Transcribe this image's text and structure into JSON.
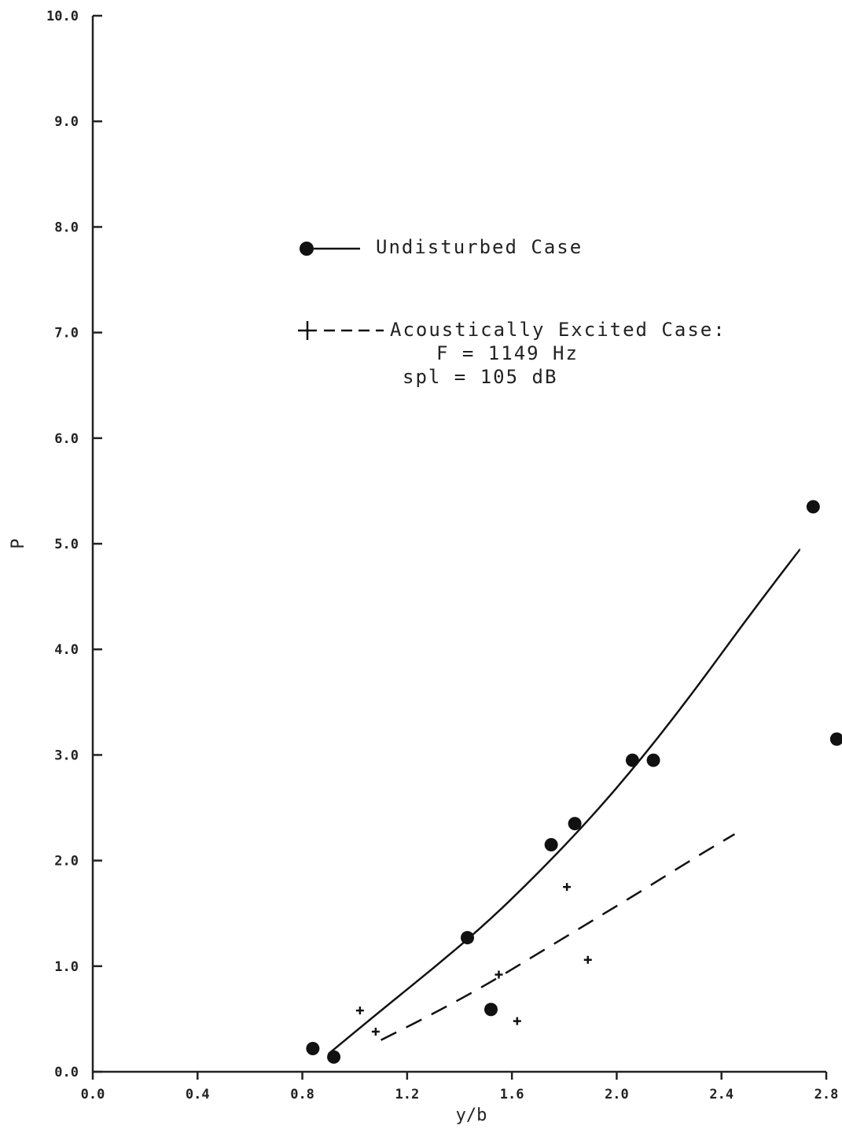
{
  "chart_data": {
    "type": "scatter",
    "title": "",
    "xlabel": "y/b",
    "ylabel": "P",
    "xlim": [
      0.0,
      2.8
    ],
    "ylim": [
      0.0,
      10.0
    ],
    "x_tick_labels": [
      "0.0",
      "0.4",
      "0.8",
      "1.2",
      "1.6",
      "2.0",
      "2.4",
      "2.8"
    ],
    "x_tick_values": [
      0.0,
      0.4,
      0.8,
      1.2,
      1.6,
      2.0,
      2.4,
      2.8
    ],
    "y_tick_labels": [
      "0.0",
      "1.0",
      "2.0",
      "3.0",
      "4.0",
      "5.0",
      "6.0",
      "7.0",
      "8.0",
      "9.0",
      "10.0"
    ],
    "y_tick_values": [
      0,
      1,
      2,
      3,
      4,
      5,
      6,
      7,
      8,
      9,
      10
    ],
    "grid": false,
    "legend": {
      "placement": "top-center",
      "entries": [
        {
          "label": "Undisturbed Case",
          "marker": "filled-circle",
          "line": "solid"
        },
        {
          "label": "Acoustically Excited Case:",
          "sublines": [
            "F = 1149 Hz",
            "spl = 105 dB"
          ],
          "marker": "plus",
          "line": "dashed"
        }
      ]
    },
    "series": [
      {
        "name": "Undisturbed Case",
        "marker": "filled-circle",
        "points": [
          {
            "x": 0.84,
            "y": 0.22
          },
          {
            "x": 0.92,
            "y": 0.14
          },
          {
            "x": 1.43,
            "y": 1.27
          },
          {
            "x": 1.52,
            "y": 0.59
          },
          {
            "x": 1.75,
            "y": 2.15
          },
          {
            "x": 1.84,
            "y": 2.35
          },
          {
            "x": 2.06,
            "y": 2.95
          },
          {
            "x": 2.14,
            "y": 2.95
          },
          {
            "x": 2.75,
            "y": 5.35
          },
          {
            "x": 2.84,
            "y": 3.15
          }
        ],
        "fit_curve": {
          "style": "solid",
          "points": [
            {
              "x": 0.9,
              "y": 0.17
            },
            {
              "x": 1.1,
              "y": 0.58
            },
            {
              "x": 1.3,
              "y": 0.98
            },
            {
              "x": 1.5,
              "y": 1.4
            },
            {
              "x": 1.7,
              "y": 1.88
            },
            {
              "x": 1.9,
              "y": 2.4
            },
            {
              "x": 2.1,
              "y": 2.98
            },
            {
              "x": 2.3,
              "y": 3.62
            },
            {
              "x": 2.5,
              "y": 4.3
            },
            {
              "x": 2.7,
              "y": 4.95
            }
          ]
        }
      },
      {
        "name": "Acoustically Excited Case",
        "marker": "plus",
        "points": [
          {
            "x": 1.02,
            "y": 0.58
          },
          {
            "x": 1.08,
            "y": 0.38
          },
          {
            "x": 1.55,
            "y": 0.92
          },
          {
            "x": 1.62,
            "y": 0.48
          },
          {
            "x": 1.81,
            "y": 1.75
          },
          {
            "x": 1.89,
            "y": 1.06
          }
        ],
        "fit_curve": {
          "style": "dashed",
          "points": [
            {
              "x": 1.1,
              "y": 0.3
            },
            {
              "x": 1.3,
              "y": 0.55
            },
            {
              "x": 1.5,
              "y": 0.82
            },
            {
              "x": 1.7,
              "y": 1.12
            },
            {
              "x": 1.9,
              "y": 1.42
            },
            {
              "x": 2.1,
              "y": 1.72
            },
            {
              "x": 2.3,
              "y": 2.03
            },
            {
              "x": 2.45,
              "y": 2.25
            }
          ]
        }
      }
    ]
  }
}
